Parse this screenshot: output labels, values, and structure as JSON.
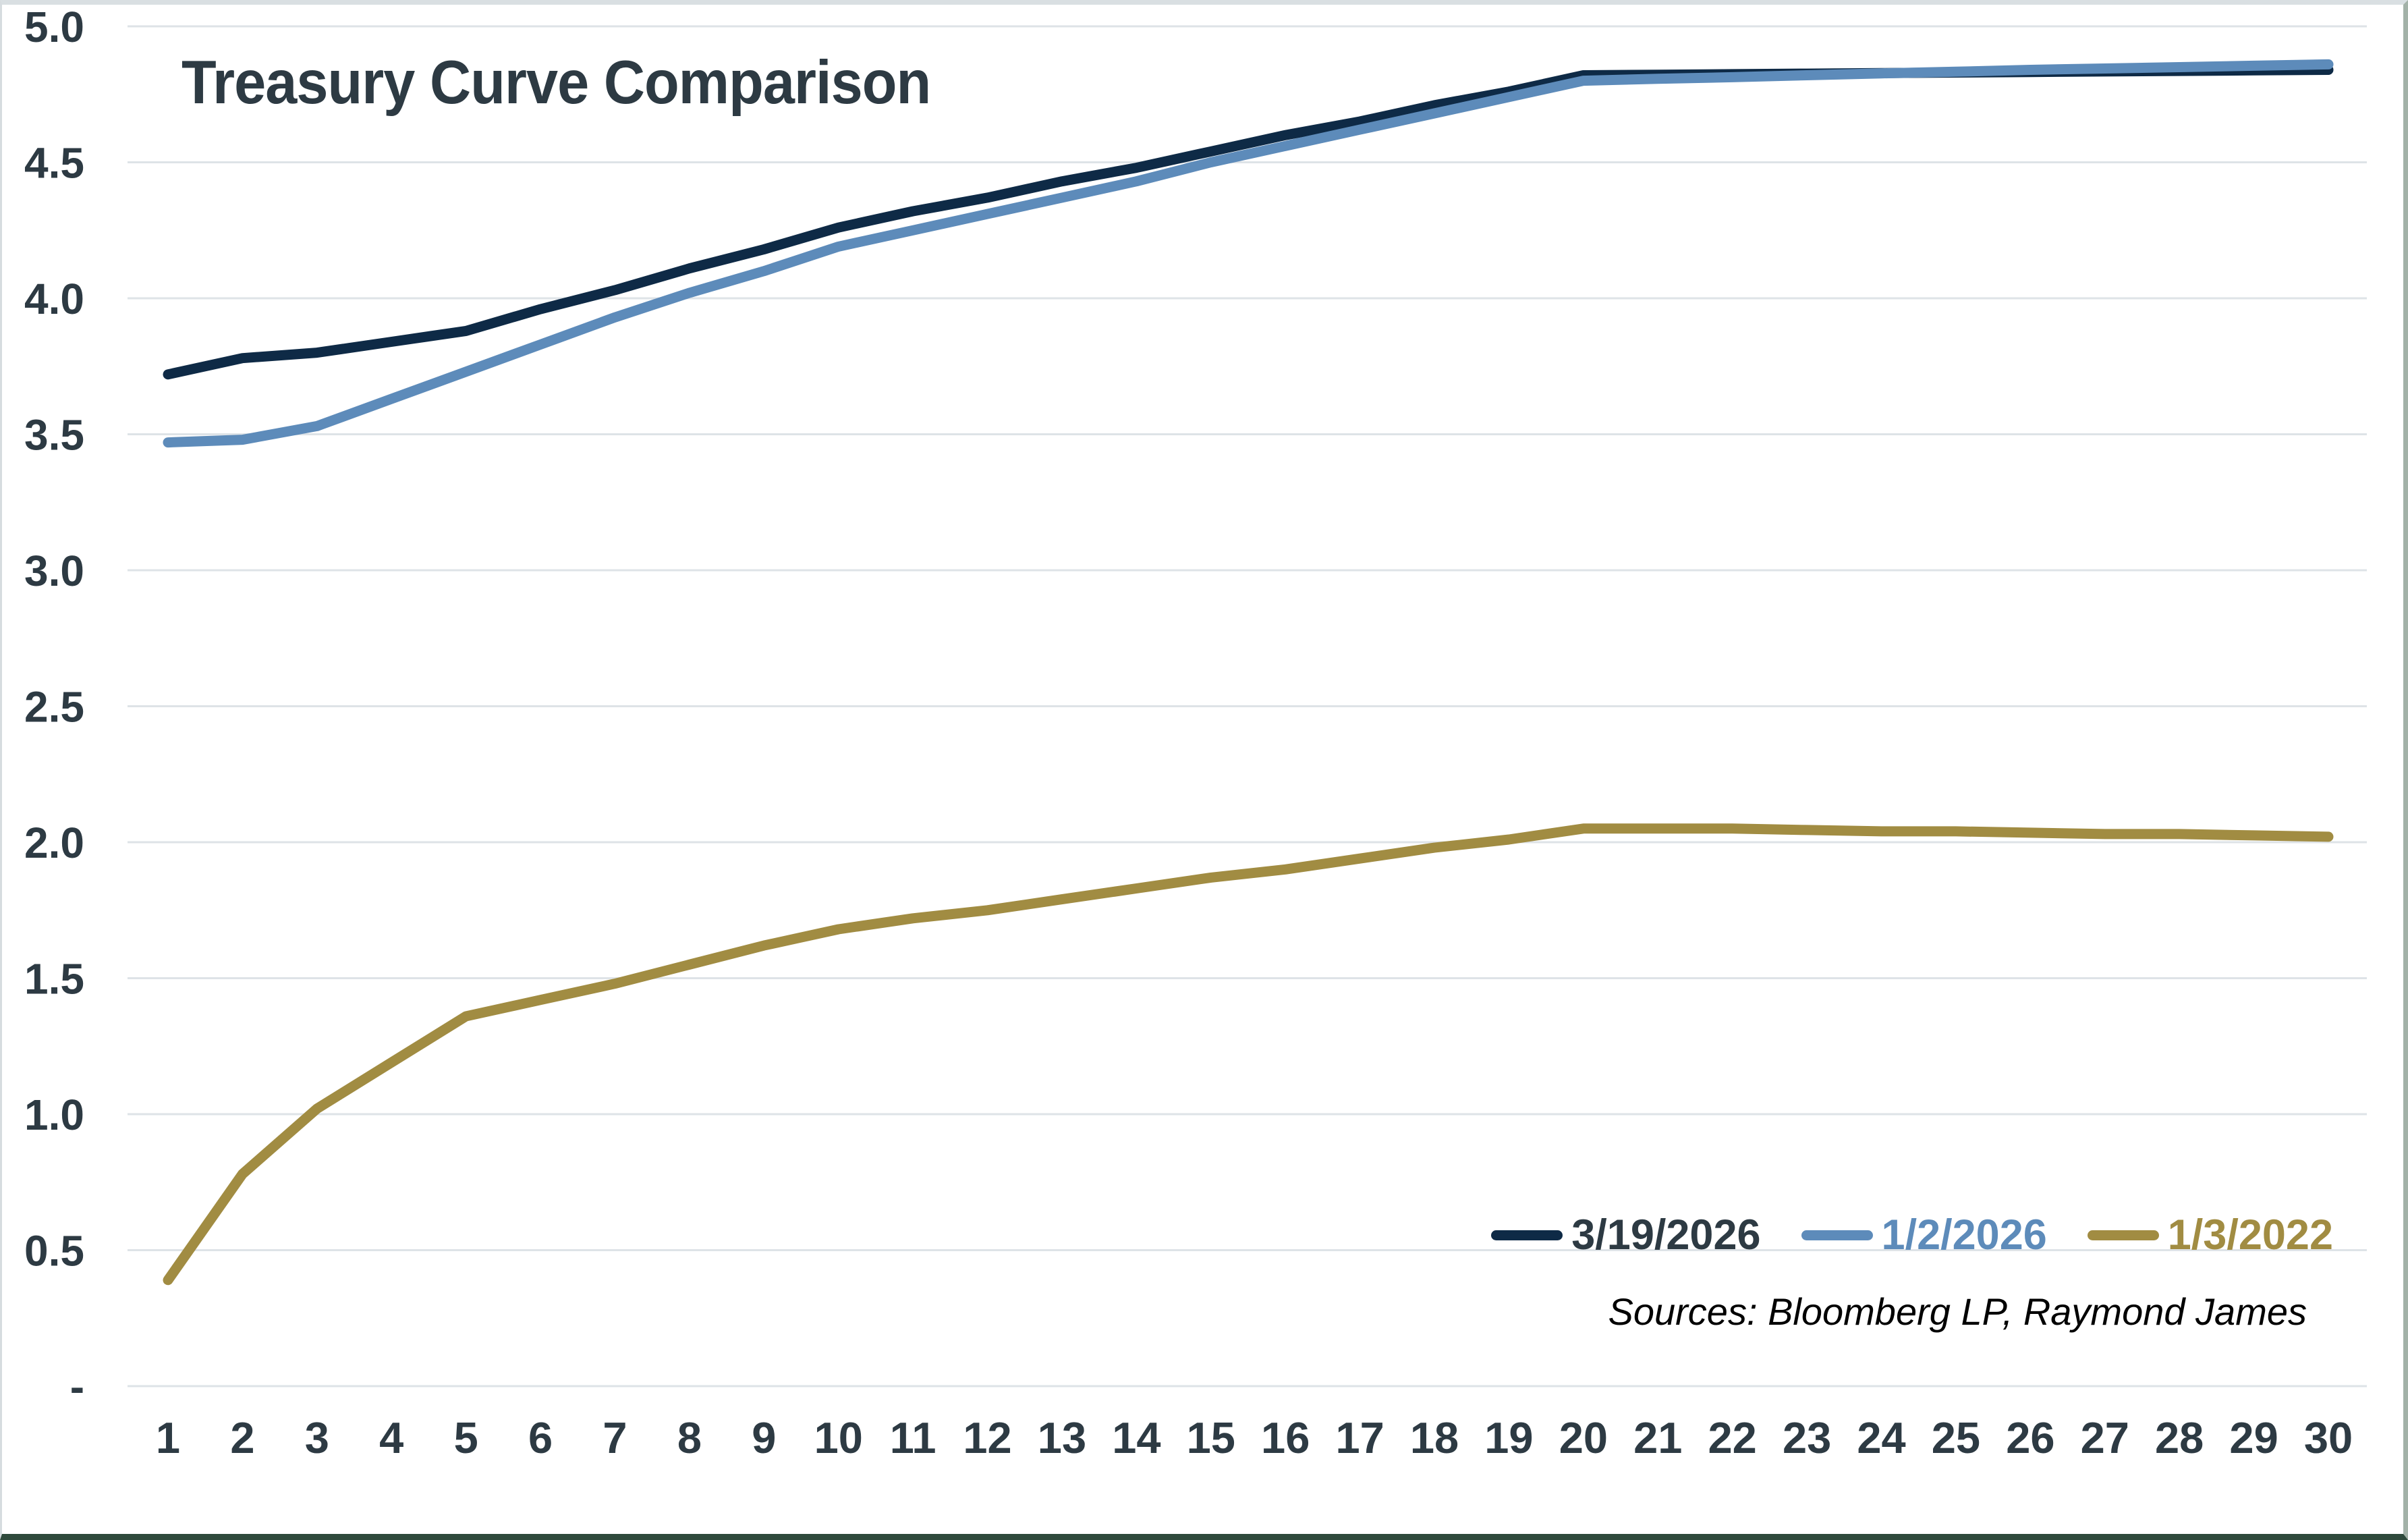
{
  "title": "Treasury Curve Comparison",
  "source_note": "Sources: Bloomberg LP, Raymond James",
  "colors": {
    "navy": "#0e2a46",
    "blue": "#5d8bba",
    "gold": "#a18c42",
    "text": "#2d3a43",
    "gridline": "#dee3e7",
    "source_text": "#000000",
    "legend_label_colors": [
      "#2d3a43",
      "#5d8bba",
      "#a18c42"
    ]
  },
  "chart_data": {
    "type": "line",
    "title": "Treasury Curve Comparison",
    "xlabel": "",
    "ylabel": "",
    "x": [
      1,
      2,
      3,
      4,
      5,
      6,
      7,
      8,
      9,
      10,
      11,
      12,
      13,
      14,
      15,
      16,
      17,
      18,
      19,
      20,
      21,
      22,
      23,
      24,
      25,
      26,
      27,
      28,
      29,
      30
    ],
    "ylim": [
      0,
      5
    ],
    "ytick_step": 0.5,
    "ytick_labels": [
      "-",
      "0.5",
      "1.0",
      "1.5",
      "2.0",
      "2.5",
      "3.0",
      "3.5",
      "4.0",
      "4.5",
      "5.0"
    ],
    "grid": true,
    "legend_position": "bottom-right",
    "series": [
      {
        "name": "3/19/2026",
        "color_key": "navy",
        "values": [
          3.72,
          3.78,
          3.8,
          3.84,
          3.88,
          3.96,
          4.03,
          4.11,
          4.18,
          4.26,
          4.32,
          4.37,
          4.43,
          4.48,
          4.54,
          4.6,
          4.65,
          4.71,
          4.76,
          4.82,
          4.822,
          4.824,
          4.826,
          4.828,
          4.83,
          4.832,
          4.834,
          4.836,
          4.838,
          4.84
        ]
      },
      {
        "name": "1/2/2026",
        "color_key": "blue",
        "values": [
          3.47,
          3.48,
          3.53,
          3.63,
          3.73,
          3.83,
          3.93,
          4.02,
          4.1,
          4.19,
          4.25,
          4.31,
          4.37,
          4.43,
          4.5,
          4.56,
          4.62,
          4.68,
          4.74,
          4.8,
          4.807,
          4.813,
          4.82,
          4.827,
          4.833,
          4.84,
          4.845,
          4.85,
          4.855,
          4.86
        ]
      },
      {
        "name": "1/3/2022",
        "color_key": "gold",
        "values": [
          0.39,
          0.78,
          1.02,
          1.19,
          1.36,
          1.42,
          1.48,
          1.55,
          1.62,
          1.68,
          1.72,
          1.75,
          1.79,
          1.83,
          1.87,
          1.9,
          1.94,
          1.98,
          2.01,
          2.05,
          2.05,
          2.05,
          2.045,
          2.04,
          2.04,
          2.035,
          2.03,
          2.03,
          2.025,
          2.02
        ]
      }
    ]
  }
}
